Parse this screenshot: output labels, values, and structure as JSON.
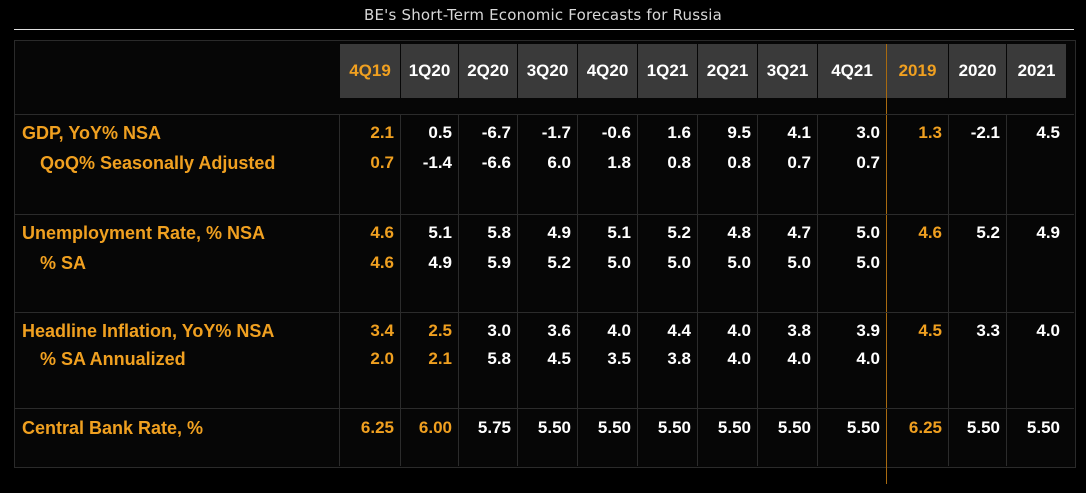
{
  "title": "BE's Short-Term Economic Forecasts for Russia",
  "columns": [
    "4Q19",
    "1Q20",
    "2Q20",
    "3Q20",
    "4Q20",
    "1Q21",
    "2Q21",
    "3Q21",
    "4Q21",
    "2019",
    "2020",
    "2021"
  ],
  "rows": [
    {
      "label": "GDP, YoY% NSA",
      "values": [
        "2.1",
        "0.5",
        "-6.7",
        "-1.7",
        "-0.6",
        "1.6",
        "9.5",
        "4.1",
        "3.0",
        "1.3",
        "-2.1",
        "4.5"
      ]
    },
    {
      "label": "QoQ% Seasonally Adjusted",
      "values": [
        "0.7",
        "-1.4",
        "-6.6",
        "6.0",
        "1.8",
        "0.8",
        "0.8",
        "0.7",
        "0.7",
        "",
        "",
        ""
      ]
    },
    {
      "label": "Unemployment Rate, % NSA",
      "values": [
        "4.6",
        "5.1",
        "5.8",
        "4.9",
        "5.1",
        "5.2",
        "4.8",
        "4.7",
        "5.0",
        "4.6",
        "5.2",
        "4.9"
      ]
    },
    {
      "label": "% SA",
      "values": [
        "4.6",
        "4.9",
        "5.9",
        "5.2",
        "5.0",
        "5.0",
        "5.0",
        "5.0",
        "5.0",
        "",
        "",
        ""
      ]
    },
    {
      "label": "Headline Inflation, YoY% NSA",
      "values": [
        "3.4",
        "2.5",
        "3.0",
        "3.6",
        "4.0",
        "4.4",
        "4.0",
        "3.8",
        "3.9",
        "4.5",
        "3.3",
        "4.0"
      ]
    },
    {
      "label": "% SA Annualized",
      "values": [
        "2.0",
        "2.1",
        "5.8",
        "4.5",
        "3.5",
        "3.8",
        "4.0",
        "4.0",
        "4.0",
        "",
        "",
        ""
      ]
    },
    {
      "label": "Central Bank Rate, %",
      "values": [
        "6.25",
        "6.00",
        "5.75",
        "5.50",
        "5.50",
        "5.50",
        "5.50",
        "5.50",
        "5.50",
        "6.25",
        "5.50",
        "5.50"
      ]
    }
  ],
  "colors": {
    "accent": "#f0a020",
    "header_bg": "#3a3a3a",
    "text": "#ffffff"
  }
}
